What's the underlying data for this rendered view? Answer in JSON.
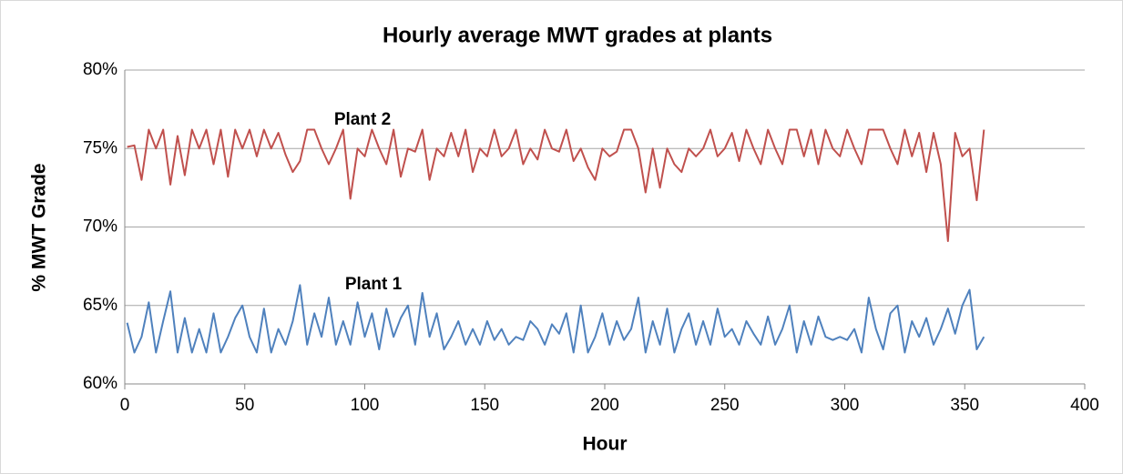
{
  "chart_data": {
    "type": "line",
    "title": "Hourly average MWT grades at plants",
    "x_label": "Hour",
    "y_label": "% MWT Grade",
    "xlim": [
      0,
      400
    ],
    "xticks": [
      0,
      50,
      100,
      150,
      200,
      250,
      300,
      350,
      400
    ],
    "ylim": [
      60,
      80
    ],
    "yticks": [
      {
        "value": 60,
        "label": "60%"
      },
      {
        "value": 65,
        "label": "65%"
      },
      {
        "value": 70,
        "label": "70%"
      },
      {
        "value": 75,
        "label": "75%"
      },
      {
        "value": 80,
        "label": "80%"
      }
    ],
    "grid": true,
    "x": [
      1,
      4,
      7,
      10,
      13,
      16,
      19,
      22,
      25,
      28,
      31,
      34,
      37,
      40,
      43,
      46,
      49,
      52,
      55,
      58,
      61,
      64,
      67,
      70,
      73,
      76,
      79,
      82,
      85,
      88,
      91,
      94,
      97,
      100,
      103,
      106,
      109,
      112,
      115,
      118,
      121,
      124,
      127,
      130,
      133,
      136,
      139,
      142,
      145,
      148,
      151,
      154,
      157,
      160,
      163,
      166,
      169,
      172,
      175,
      178,
      181,
      184,
      187,
      190,
      193,
      196,
      199,
      202,
      205,
      208,
      211,
      214,
      217,
      220,
      223,
      226,
      229,
      232,
      235,
      238,
      241,
      244,
      247,
      250,
      253,
      256,
      259,
      262,
      265,
      268,
      271,
      274,
      277,
      280,
      283,
      286,
      289,
      292,
      295,
      298,
      301,
      304,
      307,
      310,
      313,
      316,
      319,
      322,
      325,
      328,
      331,
      334,
      337,
      340,
      343,
      346,
      349,
      352,
      355,
      358
    ],
    "series": [
      {
        "name": "Plant 2",
        "color": "#c0504d",
        "values": [
          75.1,
          75.2,
          73.0,
          76.2,
          75.0,
          76.2,
          72.7,
          75.8,
          73.3,
          76.2,
          75.0,
          76.2,
          74.0,
          76.2,
          73.2,
          76.2,
          75.0,
          76.2,
          74.5,
          76.2,
          75.0,
          76.0,
          74.6,
          73.5,
          74.2,
          76.2,
          76.2,
          75.0,
          74.0,
          75.0,
          76.2,
          71.8,
          75.0,
          74.5,
          76.2,
          75.0,
          74.0,
          76.2,
          73.2,
          75.0,
          74.8,
          76.2,
          73.0,
          75.0,
          74.5,
          76.0,
          74.5,
          76.2,
          73.5,
          75.0,
          74.5,
          76.2,
          74.5,
          75.0,
          76.2,
          74.0,
          75.0,
          74.3,
          76.2,
          75.0,
          74.8,
          76.2,
          74.2,
          75.0,
          73.8,
          73.0,
          75.0,
          74.5,
          74.8,
          76.2,
          76.2,
          75.0,
          72.2,
          75.0,
          72.5,
          75.0,
          74.0,
          73.5,
          75.0,
          74.5,
          75.0,
          76.2,
          74.5,
          75.0,
          76.0,
          74.2,
          76.2,
          75.0,
          74.0,
          76.2,
          75.0,
          74.0,
          76.2,
          76.2,
          74.5,
          76.2,
          74.0,
          76.2,
          75.0,
          74.5,
          76.2,
          75.0,
          74.0,
          76.2,
          76.2,
          76.2,
          75.0,
          74.0,
          76.2,
          74.5,
          76.0,
          73.5,
          76.0,
          74.0,
          69.1,
          76.0,
          74.5,
          75.0,
          71.7,
          76.2
        ]
      },
      {
        "name": "Plant 1",
        "color": "#4f81bd",
        "values": [
          63.9,
          62.0,
          63.0,
          65.2,
          62.0,
          64.0,
          65.9,
          62.0,
          64.2,
          62.0,
          63.5,
          62.0,
          64.5,
          62.0,
          63.0,
          64.2,
          65.0,
          63.0,
          62.0,
          64.8,
          62.0,
          63.5,
          62.5,
          64.0,
          66.3,
          62.5,
          64.5,
          63.0,
          65.5,
          62.5,
          64.0,
          62.5,
          65.2,
          63.0,
          64.5,
          62.2,
          64.8,
          63.0,
          64.2,
          65.0,
          62.5,
          65.8,
          63.0,
          64.5,
          62.2,
          63.0,
          64.0,
          62.5,
          63.5,
          62.5,
          64.0,
          62.8,
          63.5,
          62.5,
          63.0,
          62.8,
          64.0,
          63.5,
          62.5,
          63.8,
          63.2,
          64.5,
          62.0,
          65.0,
          62.0,
          63.0,
          64.5,
          62.5,
          64.0,
          62.8,
          63.5,
          65.5,
          62.0,
          64.0,
          62.5,
          64.8,
          62.0,
          63.5,
          64.5,
          62.5,
          64.0,
          62.5,
          64.8,
          63.0,
          63.5,
          62.5,
          64.0,
          63.2,
          62.5,
          64.3,
          62.5,
          63.5,
          65.0,
          62.0,
          64.0,
          62.5,
          64.3,
          63.0,
          62.8,
          63.0,
          62.8,
          63.5,
          62.0,
          65.5,
          63.5,
          62.2,
          64.5,
          65.0,
          62.0,
          64.0,
          63.0,
          64.2,
          62.5,
          63.5,
          64.8,
          63.2,
          65.0,
          66.0,
          62.2,
          63.0
        ]
      }
    ]
  }
}
